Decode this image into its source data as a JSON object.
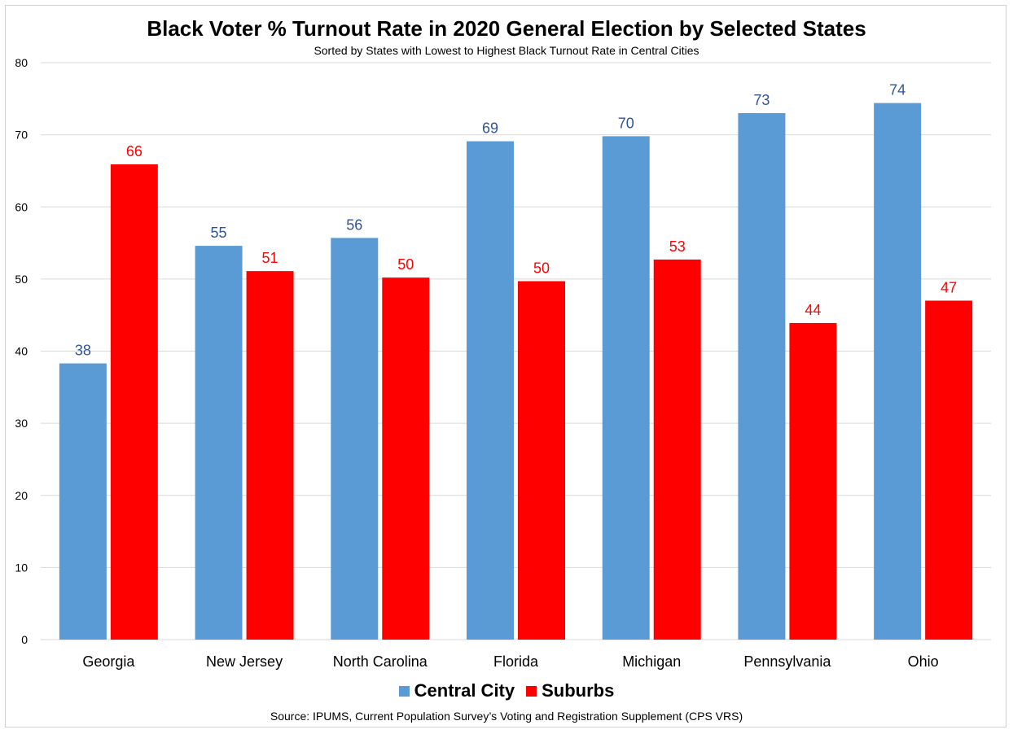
{
  "chart_data": {
    "type": "bar",
    "title": "Black Voter % Turnout Rate in 2020 General Election by Selected States",
    "subtitle": "Sorted by States with Lowest to Highest Black Turnout Rate in Central Cities",
    "categories": [
      "Georgia",
      "New Jersey",
      "North Carolina",
      "Florida",
      "Michigan",
      "Pennsylvania",
      "Ohio"
    ],
    "series": [
      {
        "name": "Central City",
        "color": "#5B9BD5",
        "label_color": "#2F5597",
        "values": [
          38.3,
          54.6,
          55.7,
          69.1,
          69.8,
          73.0,
          74.4
        ],
        "labels": [
          "38",
          "55",
          "56",
          "69",
          "70",
          "73",
          "74"
        ]
      },
      {
        "name": "Suburbs",
        "color": "#FF0000",
        "label_color": "#FF0000",
        "values": [
          65.9,
          51.1,
          50.2,
          49.7,
          52.7,
          43.9,
          47.0
        ],
        "labels": [
          "66",
          "51",
          "50",
          "50",
          "53",
          "44",
          "47"
        ]
      }
    ],
    "ylim": [
      0,
      80
    ],
    "yticks": [
      0,
      10,
      20,
      30,
      40,
      50,
      60,
      70,
      80
    ],
    "grid": true,
    "legend_position": "bottom",
    "xlabel": "",
    "ylabel": ""
  },
  "source": "Source: IPUMS, Current Population Survey’s Voting and Registration Supplement (CPS VRS)"
}
